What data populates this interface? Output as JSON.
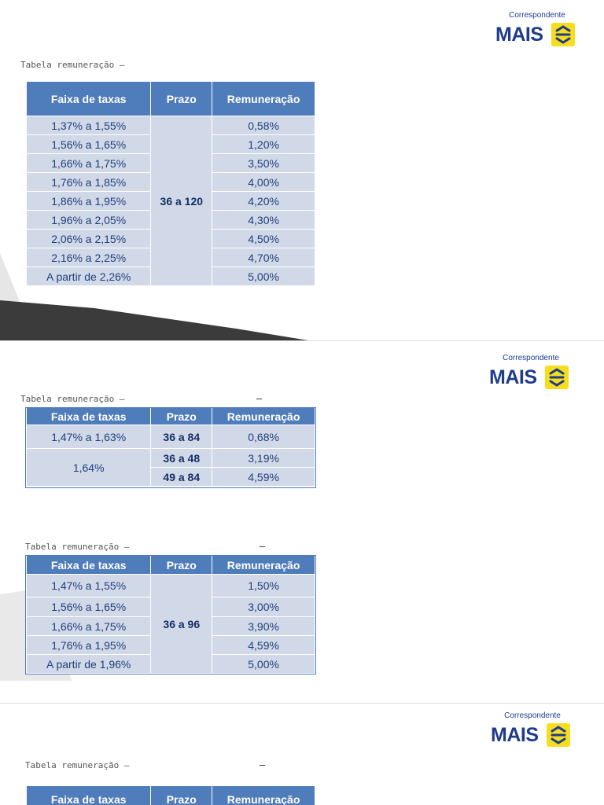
{
  "brand": {
    "subtitle": "Correspondente",
    "name": "MAIS"
  },
  "tables": [
    {
      "caption": "Tabela remuneração –",
      "dash": "",
      "headers": [
        "Faixa de taxas",
        "Prazo",
        "Remuneração"
      ],
      "prazo": "36 a 120",
      "rows": [
        {
          "faixa": "1,37% a 1,55%",
          "rem": "0,58%"
        },
        {
          "faixa": "1,56% a 1,65%",
          "rem": "1,20%"
        },
        {
          "faixa": "1,66% a 1,75%",
          "rem": "3,50%"
        },
        {
          "faixa": "1,76% a 1,85%",
          "rem": "4,00%"
        },
        {
          "faixa": "1,86% a 1,95%",
          "rem": "4,20%"
        },
        {
          "faixa": "1,96% a 2,05%",
          "rem": "4,30%"
        },
        {
          "faixa": "2,06% a 2,15%",
          "rem": "4,50%"
        },
        {
          "faixa": "2,16% a 2,25%",
          "rem": "4,70%"
        },
        {
          "faixa": "A partir de 2,26%",
          "rem": "5,00%"
        }
      ]
    },
    {
      "caption": "Tabela remuneração –",
      "dash": "–",
      "headers": [
        "Faixa de taxas",
        "Prazo",
        "Remuneração"
      ],
      "rows": [
        {
          "faixa": "1,47% a 1,63%",
          "prazo": "36 a 84",
          "rem": "0,68%"
        },
        {
          "faixa": "1,64%",
          "prazo": "36 a 48",
          "rem": "3,19%"
        },
        {
          "prazo": "49 a 84",
          "rem": "4,59%"
        }
      ]
    },
    {
      "caption": "Tabela remuneração –",
      "dash": "–",
      "headers": [
        "Faixa de taxas",
        "Prazo",
        "Remuneração"
      ],
      "prazo": "36 a 96",
      "rows": [
        {
          "faixa": "1,47% a 1,55%",
          "rem": "1,50%"
        },
        {
          "faixa": "1,56% a 1,65%",
          "rem": "3,00%"
        },
        {
          "faixa": "1,66% a 1,75%",
          "rem": "3,90%"
        },
        {
          "faixa": "1,76% a 1,95%",
          "rem": "4,59%"
        },
        {
          "faixa": "A partir de 1,96%",
          "rem": "5,00%"
        }
      ]
    },
    {
      "caption": "Tabela remuneração –",
      "dash": "–",
      "headers": [
        "Faixa de taxas",
        "Prazo",
        "Remuneração"
      ]
    }
  ]
}
